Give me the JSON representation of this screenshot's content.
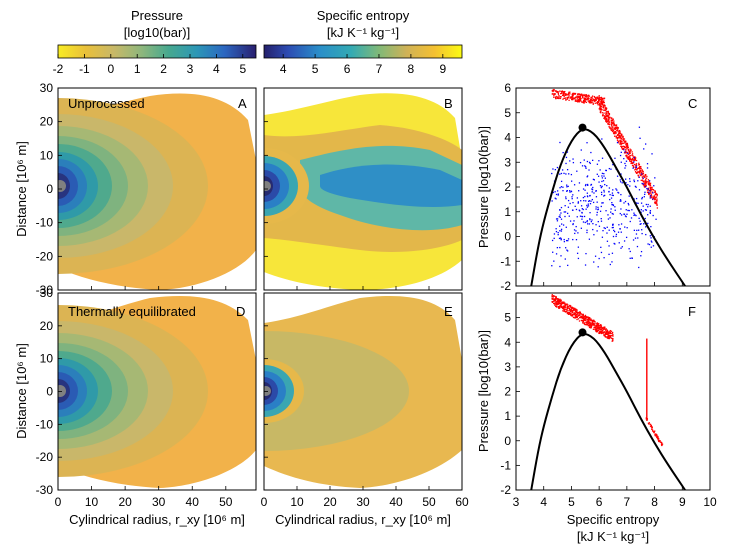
{
  "colorbars": {
    "pressure": {
      "title_line1": "Pressure",
      "title_line2": "[log10(bar)]",
      "ticks": [
        "-2",
        "-1",
        "0",
        "1",
        "2",
        "3",
        "4",
        "5"
      ],
      "range": [
        -2,
        5.5
      ],
      "colors": [
        "#f7e622",
        "#e6c239",
        "#c9b86a",
        "#9fb67a",
        "#5fae8c",
        "#2e9bb0",
        "#2d6fc2",
        "#2a2e80"
      ]
    },
    "entropy": {
      "title_line1": "Specific entropy",
      "title_line2": "[kJ K⁻¹ kg⁻¹]",
      "ticks": [
        "4",
        "5",
        "6",
        "7",
        "8",
        "9"
      ],
      "range": [
        3.4,
        9.6
      ],
      "colors": [
        "#24236e",
        "#2d4fb0",
        "#2a8fc8",
        "#4ab0a8",
        "#9cb870",
        "#e0b44a",
        "#f0c030",
        "#fafa10"
      ]
    }
  },
  "panels": {
    "A": {
      "letter": "A",
      "label": "Unprocessed"
    },
    "B": {
      "letter": "B"
    },
    "C": {
      "letter": "C"
    },
    "D": {
      "letter": "D",
      "label": "Thermally equilibrated"
    },
    "E": {
      "letter": "E"
    },
    "F": {
      "letter": "F"
    }
  },
  "maps": {
    "ylabel": "Distance [10⁶ m]",
    "xlabel": "Cylindrical radius, r_xy [10⁶ m]",
    "xticks_left": [
      "0",
      "10",
      "20",
      "30",
      "40",
      "50"
    ],
    "xticks_right": [
      "0",
      "10",
      "20",
      "30",
      "40",
      "50",
      "60"
    ],
    "yticks": [
      "30",
      "20",
      "10",
      "0",
      "-10",
      "-20",
      "-30"
    ]
  },
  "chart_data": [
    {
      "type": "scatter",
      "panel": "C",
      "ylabel": "Pressure [log10(bar)]",
      "xlim": [
        3,
        10
      ],
      "ylim": [
        -2,
        6
      ],
      "yticks": [
        "6",
        "5",
        "4",
        "3",
        "2",
        "1",
        "0",
        "-1",
        "-2"
      ],
      "critical_point": {
        "x": 5.4,
        "y": 4.4
      },
      "vapor_dome": {
        "x": [
          3.55,
          3.8,
          4.0,
          4.3,
          4.6,
          5.0,
          5.4,
          5.8,
          6.2,
          6.6,
          7.0,
          7.5,
          8.0,
          8.5,
          9.1
        ],
        "y": [
          -2,
          -0.4,
          0.6,
          1.8,
          2.9,
          3.9,
          4.4,
          4.2,
          3.6,
          2.8,
          2.0,
          0.9,
          -0.1,
          -1.0,
          -2
        ]
      },
      "series": [
        {
          "name": "red particles",
          "color": "#ff0000",
          "description": "high-pressure branch from 4.3 to 8.1 kJ/K/kg, pressure 5.9 falling to 1.1"
        },
        {
          "name": "blue particles",
          "color": "#0000ff",
          "description": "cloud between 4.3 and 8 kJ/K/kg, pressure -1.3 to 3.8"
        }
      ]
    },
    {
      "type": "scatter",
      "panel": "F",
      "xlabel": "Specific entropy",
      "xlabel2": "[kJ K⁻¹ kg⁻¹]",
      "ylabel": "Pressure [log10(bar)]",
      "xlim": [
        3,
        10
      ],
      "ylim": [
        -2,
        6
      ],
      "xticks": [
        "3",
        "4",
        "5",
        "6",
        "7",
        "8",
        "9",
        "10"
      ],
      "yticks": [
        "5",
        "4",
        "3",
        "2",
        "1",
        "0",
        "-1",
        "-2"
      ],
      "critical_point": {
        "x": 5.4,
        "y": 4.4
      },
      "vapor_dome": {
        "x": [
          3.55,
          3.8,
          4.0,
          4.3,
          4.6,
          5.0,
          5.4,
          5.8,
          6.2,
          6.6,
          7.0,
          7.5,
          8.0,
          8.5,
          9.1
        ],
        "y": [
          -2,
          -0.4,
          0.6,
          1.8,
          2.9,
          3.9,
          4.4,
          4.2,
          3.6,
          2.8,
          2.0,
          0.9,
          -0.1,
          -1.0,
          -2
        ]
      },
      "series": [
        {
          "name": "red particles",
          "color": "#ff0000",
          "description": "band from 4.3 to 6.5 kJ/K/kg at pressure 5.9 to 4.1, vertical line at 7.7 from 0.9 to 4.1, tail along the dome to 8.3"
        }
      ]
    }
  ]
}
